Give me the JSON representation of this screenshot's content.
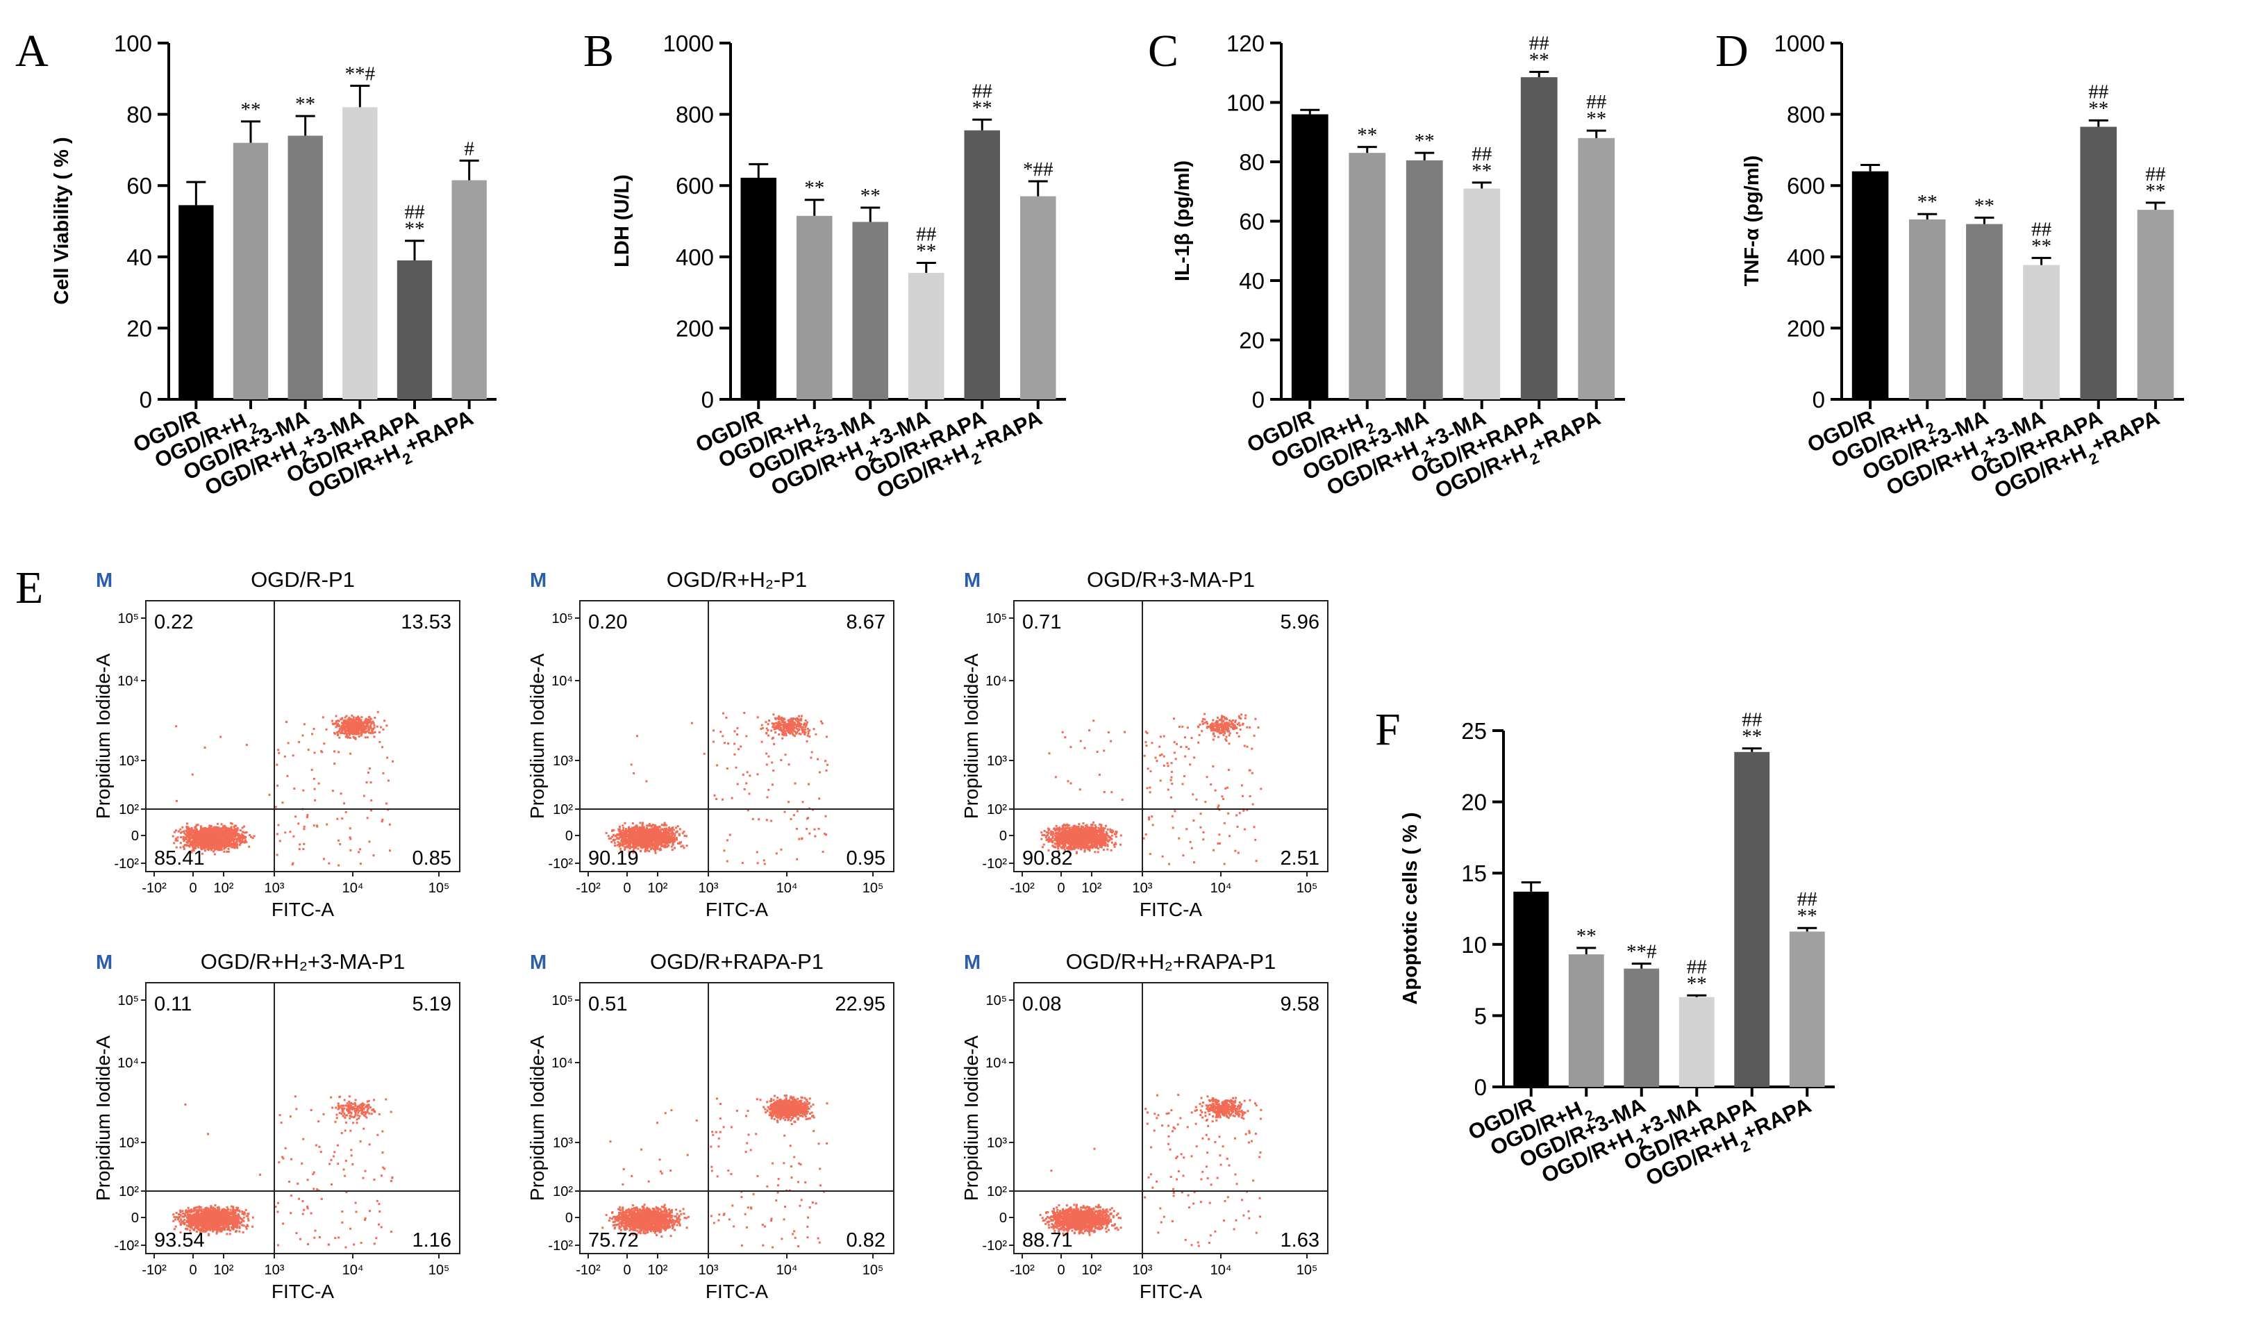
{
  "chart_data": [
    {
      "id": "A",
      "type": "bar",
      "panel_label": "A",
      "ylabel": "Cell Viability ( % )",
      "ylim": [
        0,
        100
      ],
      "yticks": [
        0,
        20,
        40,
        60,
        80,
        100
      ],
      "categories": [
        "OGD/R",
        "OGD/R+H2",
        "OGD/R+3-MA",
        "OGD/R+H2+3-MA",
        "OGD/R+RAPA",
        "OGD/R+H2+RAPA"
      ],
      "values": [
        54.5,
        72,
        74,
        82,
        39,
        61.5
      ],
      "errors": [
        6.5,
        6,
        5.5,
        6,
        5.5,
        5.5
      ],
      "significance": [
        [],
        [
          "**"
        ],
        [
          "**"
        ],
        [
          "**#"
        ],
        [
          "##",
          "**"
        ],
        [
          "#"
        ]
      ],
      "colors": [
        "#000000",
        "#9a9a9a",
        "#7d7d7d",
        "#d2d2d2",
        "#5a5a5a",
        "#a0a0a0"
      ]
    },
    {
      "id": "B",
      "type": "bar",
      "panel_label": "B",
      "ylabel": "LDH (U/L)",
      "ylim": [
        0,
        1000
      ],
      "yticks": [
        0,
        200,
        400,
        600,
        800,
        1000
      ],
      "categories": [
        "OGD/R",
        "OGD/R+H2",
        "OGD/R+3-MA",
        "OGD/R+H2+3-MA",
        "OGD/R+RAPA",
        "OGD/R+H2+RAPA"
      ],
      "values": [
        622,
        515,
        498,
        355,
        755,
        570
      ],
      "errors": [
        38,
        45,
        40,
        28,
        30,
        42
      ],
      "significance": [
        [],
        [
          "**"
        ],
        [
          "**"
        ],
        [
          "##",
          "**"
        ],
        [
          "##",
          "**"
        ],
        [
          "*##"
        ]
      ],
      "colors": [
        "#000000",
        "#9a9a9a",
        "#7d7d7d",
        "#d2d2d2",
        "#5a5a5a",
        "#a0a0a0"
      ]
    },
    {
      "id": "C",
      "type": "bar",
      "panel_label": "C",
      "ylabel": "IL-1β (pg/ml)",
      "ylim": [
        0,
        120
      ],
      "yticks": [
        0,
        20,
        40,
        60,
        80,
        100,
        120
      ],
      "categories": [
        "OGD/R",
        "OGD/R+H2",
        "OGD/R+3-MA",
        "OGD/R+H2+3-MA",
        "OGD/R+RAPA",
        "OGD/R+H2+RAPA"
      ],
      "values": [
        96,
        83,
        80.5,
        71,
        108.5,
        88
      ],
      "errors": [
        1.5,
        2,
        2.5,
        2,
        1.8,
        2.5
      ],
      "significance": [
        [],
        [
          "**"
        ],
        [
          "**"
        ],
        [
          "##",
          "**"
        ],
        [
          "##",
          "**"
        ],
        [
          "##",
          "**"
        ]
      ],
      "colors": [
        "#000000",
        "#9a9a9a",
        "#7d7d7d",
        "#d2d2d2",
        "#5a5a5a",
        "#a0a0a0"
      ]
    },
    {
      "id": "D",
      "type": "bar",
      "panel_label": "D",
      "ylabel": "TNF-α (pg/ml)",
      "ylim": [
        0,
        1000
      ],
      "yticks": [
        0,
        200,
        400,
        600,
        800,
        1000
      ],
      "categories": [
        "OGD/R",
        "OGD/R+H2",
        "OGD/R+3-MA",
        "OGD/R+H2+3-MA",
        "OGD/R+RAPA",
        "OGD/R+H2+RAPA"
      ],
      "values": [
        640,
        505,
        492,
        377,
        765,
        532
      ],
      "errors": [
        18,
        15,
        18,
        20,
        18,
        20
      ],
      "significance": [
        [],
        [
          "**"
        ],
        [
          "**"
        ],
        [
          "##",
          "**"
        ],
        [
          "##",
          "**"
        ],
        [
          "##",
          "**"
        ]
      ],
      "colors": [
        "#000000",
        "#9a9a9a",
        "#7d7d7d",
        "#d2d2d2",
        "#5a5a5a",
        "#a0a0a0"
      ]
    },
    {
      "id": "F",
      "type": "bar",
      "panel_label": "F",
      "ylabel": "Apoptotic cells ( % )",
      "ylim": [
        0,
        25
      ],
      "yticks": [
        0,
        5,
        10,
        15,
        20,
        25
      ],
      "categories": [
        "OGD/R",
        "OGD/R+H2",
        "OGD/R+3-MA",
        "OGD/R+H2+3-MA",
        "OGD/R+RAPA",
        "OGD/R+H2+RAPA"
      ],
      "values": [
        13.7,
        9.3,
        8.3,
        6.3,
        23.5,
        10.9
      ],
      "errors": [
        0.65,
        0.45,
        0.35,
        0.12,
        0.25,
        0.25
      ],
      "significance": [
        [],
        [
          "**"
        ],
        [
          "**#"
        ],
        [
          "##",
          "**"
        ],
        [
          "##",
          "**"
        ],
        [
          "##",
          "**"
        ]
      ],
      "colors": [
        "#000000",
        "#9a9a9a",
        "#7d7d7d",
        "#d2d2d2",
        "#5a5a5a",
        "#a0a0a0"
      ]
    },
    {
      "id": "E",
      "type": "scatter",
      "panel_label": "E",
      "xlabel": "FITC-A",
      "ylabel": "Propidium Iodide-A",
      "marker": "M",
      "axis_ticks": [
        "-10²",
        "0",
        "10²",
        "10³",
        "10⁴",
        "10⁵"
      ],
      "plots": [
        {
          "title": "OGD/R-P1",
          "quadrants": {
            "ul": "0.22",
            "ur": "13.53",
            "ll": "85.41",
            "lr": "0.85"
          }
        },
        {
          "title": "OGD/R+H₂-P1",
          "quadrants": {
            "ul": "0.20",
            "ur": "8.67",
            "ll": "90.19",
            "lr": "0.95"
          }
        },
        {
          "title": "OGD/R+3-MA-P1",
          "quadrants": {
            "ul": "0.71",
            "ur": "5.96",
            "ll": "90.82",
            "lr": "2.51"
          }
        },
        {
          "title": "OGD/R+H₂+3-MA-P1",
          "quadrants": {
            "ul": "0.11",
            "ur": "5.19",
            "ll": "93.54",
            "lr": "1.16"
          }
        },
        {
          "title": "OGD/R+RAPA-P1",
          "quadrants": {
            "ul": "0.51",
            "ur": "22.95",
            "ll": "75.72",
            "lr": "0.82"
          }
        },
        {
          "title": "OGD/R+H₂+RAPA-P1",
          "quadrants": {
            "ul": "0.08",
            "ur": "9.58",
            "ll": "88.71",
            "lr": "1.63"
          }
        }
      ]
    }
  ]
}
